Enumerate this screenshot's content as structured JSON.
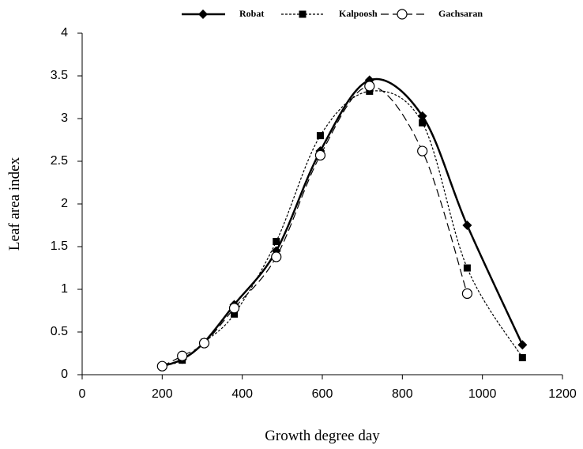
{
  "chart_data": {
    "type": "line",
    "x_label": "Growth degree day",
    "y_label": "Leaf area index",
    "xlim": [
      0,
      1200
    ],
    "xticks": [
      0,
      200,
      400,
      600,
      800,
      1000,
      1200
    ],
    "ylim": [
      0,
      4
    ],
    "yticks": [
      0,
      0.5,
      1,
      1.5,
      2,
      2.5,
      3,
      3.5,
      4
    ],
    "grid": false,
    "smooth": true,
    "legend": "top",
    "series": [
      {
        "name": "Robat",
        "color": "#000000",
        "line_style": "solid",
        "marker": "diamond",
        "x": [
          200,
          250,
          305,
          380,
          485,
          595,
          718,
          850,
          962,
          1100
        ],
        "values": [
          0.1,
          0.18,
          0.38,
          0.82,
          1.45,
          2.62,
          3.45,
          3.03,
          1.75,
          0.35
        ]
      },
      {
        "name": "Kalpoosh",
        "color": "#000000",
        "line_style": "dotted",
        "marker": "square",
        "x": [
          200,
          250,
          305,
          380,
          485,
          595,
          718,
          850,
          962,
          1100
        ],
        "values": [
          0.1,
          0.17,
          0.38,
          0.71,
          1.56,
          2.8,
          3.32,
          2.95,
          1.25,
          0.2
        ]
      },
      {
        "name": "Gachsaran",
        "color": "#000000",
        "line_style": "dashed",
        "marker": "circle",
        "x": [
          200,
          250,
          305,
          380,
          485,
          595,
          718,
          850,
          962
        ],
        "values": [
          0.1,
          0.22,
          0.37,
          0.78,
          1.38,
          2.57,
          3.38,
          2.62,
          0.95
        ]
      }
    ]
  }
}
